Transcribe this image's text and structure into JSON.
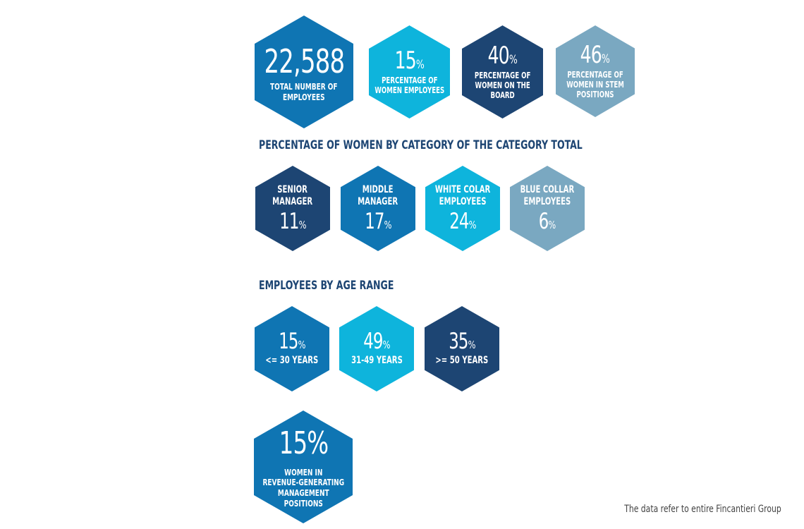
{
  "kpis": [
    {
      "value": "22,588",
      "unit": "",
      "label_lines": [
        "TOTAL NUMBER OF",
        "EMPLOYEES"
      ],
      "color": "#0f75b3"
    },
    {
      "value": "15",
      "unit": "%",
      "label_lines": [
        "PERCENTAGE OF",
        "WOMEN EMPLOYEES"
      ],
      "color": "#0eb4dc"
    },
    {
      "value": "40",
      "unit": "%",
      "label_lines": [
        "PERCENTAGE OF",
        "WOMEN ON THE",
        "BOARD"
      ],
      "color": "#1d4573"
    },
    {
      "value": "46",
      "unit": "%",
      "label_lines": [
        "PERCENTAGE OF",
        "WOMEN IN STEM",
        "POSITIONS"
      ],
      "color": "#7aa8c1"
    }
  ],
  "women_by_category": {
    "title": "PERCENTAGE OF WOMEN BY CATEGORY OF THE CATEGORY TOTAL",
    "items": [
      {
        "label_lines": [
          "SENIOR",
          "MANAGER"
        ],
        "value": "11",
        "unit": "%",
        "color": "#1d4573"
      },
      {
        "label_lines": [
          "MIDDLE",
          "MANAGER"
        ],
        "value": "17",
        "unit": "%",
        "color": "#0f75b3"
      },
      {
        "label_lines": [
          "WHITE COLAR",
          "EMPLOYEES"
        ],
        "value": "24",
        "unit": "%",
        "color": "#0eb4dc"
      },
      {
        "label_lines": [
          "BLUE COLLAR",
          "EMPLOYEES"
        ],
        "value": "6",
        "unit": "%",
        "color": "#7aa8c1"
      }
    ]
  },
  "age_range": {
    "title": "EMPLOYEES BY AGE RANGE",
    "items": [
      {
        "value": "15",
        "unit": "%",
        "label": "<= 30 YEARS",
        "color": "#0f75b3"
      },
      {
        "value": "49",
        "unit": "%",
        "label": "31-49 YEARS",
        "color": "#0eb4dc"
      },
      {
        "value": "35",
        "unit": "%",
        "label": ">= 50 YEARS",
        "color": "#1d4573"
      }
    ]
  },
  "revenue_management": {
    "value": "15%",
    "label_lines": [
      "WOMEN IN",
      "REVENUE-GENERATING",
      "MANAGEMENT",
      "POSITIONS"
    ],
    "color": "#0f75b3"
  },
  "footnote": "The data refer to entire Fincantieri Group"
}
